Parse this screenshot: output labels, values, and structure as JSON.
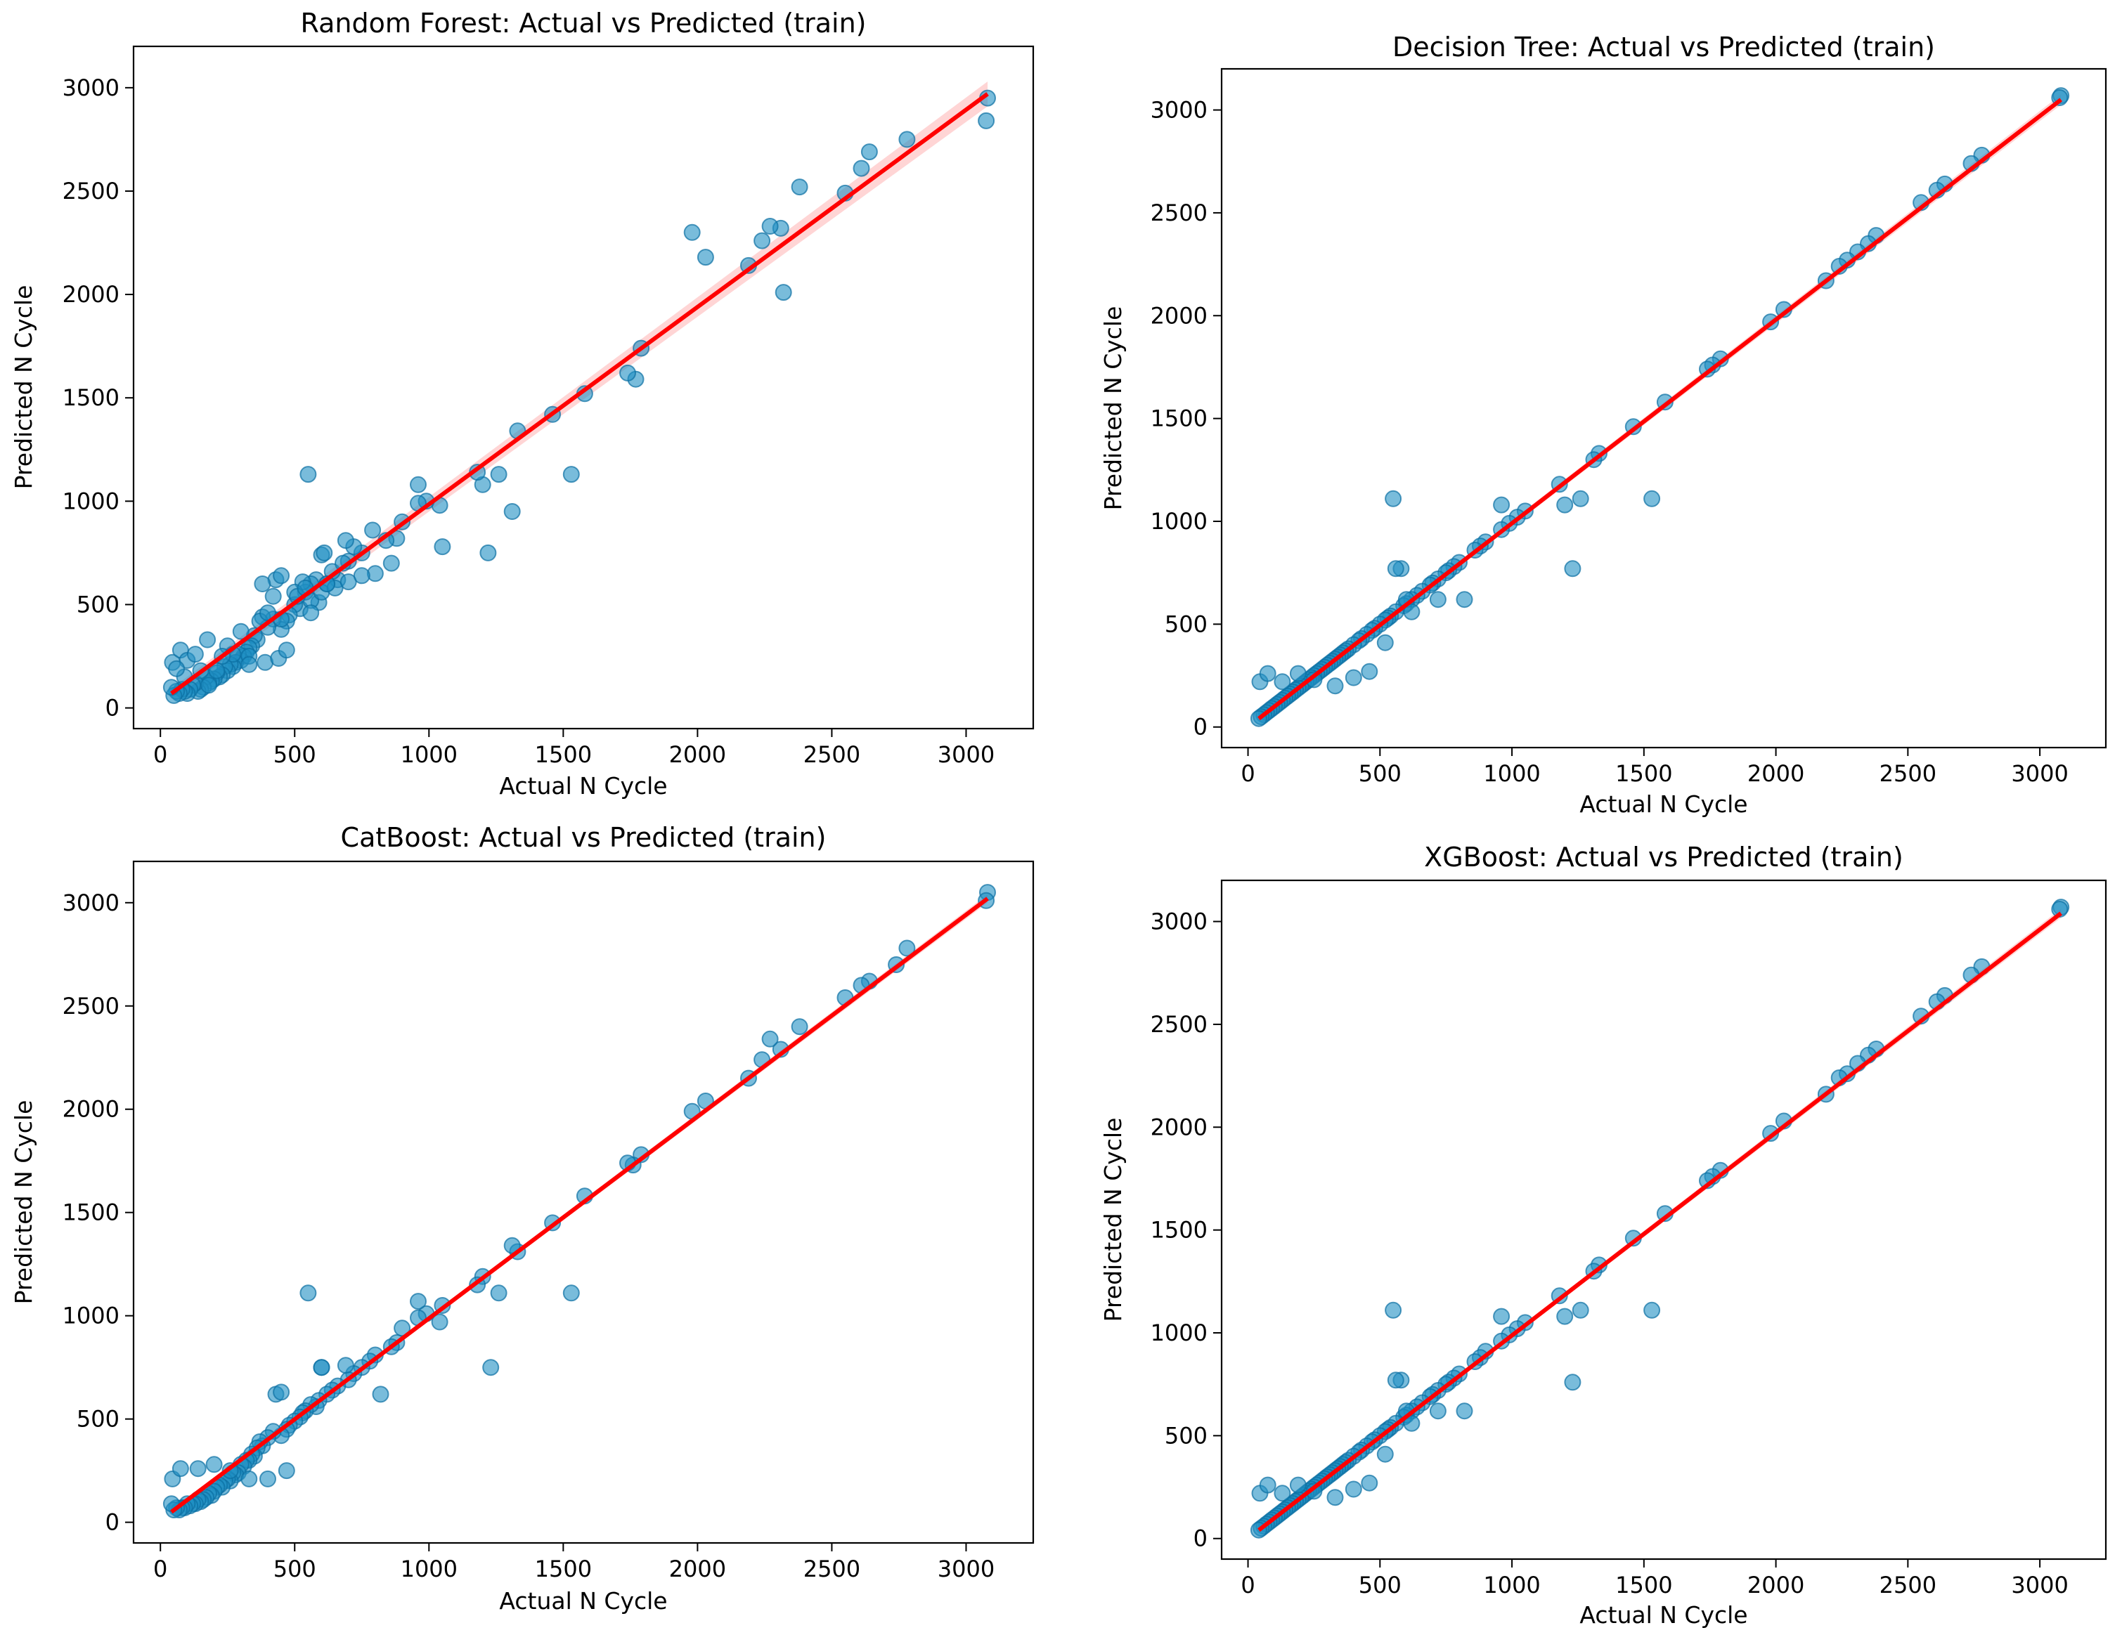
{
  "colors": {
    "point": "#1f8fc3",
    "point_edge": "#0b6fa3",
    "fit_line": "#ff0000",
    "confidence_band": "#ffb3b3"
  },
  "chart_data": [
    {
      "type": "scatter",
      "title": "Random Forest: Actual vs Predicted (train)",
      "xlabel": "Actual N Cycle",
      "ylabel": "Predicted N Cycle",
      "xlim": [
        -100,
        3250
      ],
      "ylim": [
        -100,
        3200
      ],
      "xticks": [
        0,
        500,
        1000,
        1500,
        2000,
        2500,
        3000
      ],
      "yticks": [
        0,
        500,
        1000,
        1500,
        2000,
        2500,
        3000
      ],
      "fit": {
        "x": [
          41,
          3080
        ],
        "y": [
          70,
          2970
        ]
      },
      "band_halfwidth": 60,
      "points": {
        "x": [
          3080,
          3075,
          2780,
          2640,
          2610,
          2550,
          2380,
          2310,
          2270,
          2240,
          2190,
          2030,
          1980,
          2320,
          1790,
          1770,
          1740,
          1580,
          1530,
          1460,
          1330,
          1310,
          1260,
          1220,
          1200,
          1180,
          1050,
          1040,
          990,
          960,
          960,
          900,
          880,
          860,
          840,
          800,
          790,
          750,
          720,
          700,
          690,
          660,
          640,
          620,
          600,
          590,
          580,
          560,
          540,
          530,
          550,
          520,
          500,
          480,
          470,
          450,
          430,
          420,
          400,
          380,
          370,
          360,
          350,
          340,
          330,
          320,
          310,
          300,
          290,
          280,
          270,
          260,
          250,
          240,
          230,
          220,
          210,
          200,
          190,
          180,
          170,
          160,
          150,
          140,
          130,
          120,
          110,
          100,
          90,
          80,
          70,
          60,
          50,
          41,
          45,
          75,
          100,
          175,
          250,
          330,
          390,
          440,
          470,
          610,
          450,
          380,
          420,
          500,
          560,
          600,
          650,
          700,
          750,
          300,
          330,
          270,
          230,
          210,
          180,
          150,
          130,
          90,
          60,
          400,
          450,
          510,
          540,
          560,
          620,
          680
        ],
        "y": [
          2950,
          2840,
          2750,
          2690,
          2610,
          2490,
          2520,
          2320,
          2330,
          2260,
          2140,
          2180,
          2300,
          2010,
          1740,
          1590,
          1620,
          1520,
          1130,
          1420,
          1340,
          950,
          1130,
          750,
          1080,
          1140,
          780,
          980,
          1000,
          1080,
          990,
          900,
          820,
          700,
          810,
          650,
          860,
          750,
          780,
          710,
          810,
          620,
          660,
          600,
          740,
          510,
          620,
          600,
          560,
          610,
          1130,
          480,
          500,
          450,
          420,
          380,
          620,
          430,
          390,
          440,
          420,
          330,
          350,
          300,
          290,
          270,
          250,
          230,
          260,
          220,
          200,
          210,
          180,
          200,
          160,
          150,
          170,
          140,
          130,
          120,
          150,
          100,
          90,
          80,
          120,
          110,
          90,
          70,
          80,
          90,
          70,
          80,
          60,
          100,
          220,
          280,
          230,
          330,
          300,
          250,
          220,
          240,
          280,
          750,
          640,
          600,
          540,
          560,
          520,
          560,
          580,
          610,
          640,
          370,
          210,
          260,
          250,
          180,
          110,
          180,
          260,
          150,
          190,
          460,
          430,
          540,
          580,
          460,
          600,
          700
        ]
      }
    },
    {
      "type": "scatter",
      "title": "Decision Tree: Actual vs Predicted (train)",
      "xlabel": "Actual N Cycle",
      "ylabel": "Predicted N Cycle",
      "xlim": [
        -100,
        3250
      ],
      "ylim": [
        -100,
        3200
      ],
      "xticks": [
        0,
        500,
        1000,
        1500,
        2000,
        2500,
        3000
      ],
      "yticks": [
        0,
        500,
        1000,
        1500,
        2000,
        2500,
        3000
      ],
      "fit": {
        "x": [
          41,
          3080
        ],
        "y": [
          41,
          3050
        ]
      },
      "band_halfwidth": 25,
      "points": {
        "x": [
          3080,
          3075,
          2780,
          2740,
          2640,
          2610,
          2550,
          2380,
          2350,
          2310,
          2270,
          2240,
          2190,
          2030,
          1980,
          1790,
          1760,
          1740,
          1580,
          1530,
          1460,
          1330,
          1310,
          1260,
          1230,
          1200,
          1180,
          1050,
          1020,
          990,
          960,
          960,
          900,
          880,
          860,
          820,
          800,
          780,
          760,
          750,
          720,
          700,
          690,
          660,
          640,
          620,
          600,
          590,
          580,
          560,
          540,
          530,
          550,
          520,
          500,
          480,
          470,
          450,
          430,
          420,
          400,
          380,
          370,
          360,
          350,
          340,
          330,
          320,
          310,
          300,
          290,
          280,
          270,
          260,
          250,
          240,
          230,
          220,
          210,
          200,
          190,
          180,
          170,
          160,
          150,
          140,
          130,
          120,
          110,
          100,
          90,
          80,
          70,
          60,
          50,
          41,
          45,
          75,
          130,
          190,
          250,
          330,
          400,
          460,
          600,
          620,
          720,
          560,
          520
        ],
        "y": [
          3070,
          3060,
          2780,
          2740,
          2640,
          2610,
          2550,
          2390,
          2350,
          2310,
          2270,
          2240,
          2170,
          2030,
          1970,
          1790,
          1760,
          1740,
          1580,
          1110,
          1460,
          1330,
          1300,
          1110,
          770,
          1080,
          1180,
          1050,
          1020,
          990,
          1080,
          960,
          900,
          880,
          860,
          620,
          800,
          780,
          760,
          750,
          720,
          700,
          690,
          660,
          640,
          620,
          600,
          590,
          770,
          560,
          540,
          530,
          1110,
          520,
          500,
          480,
          470,
          450,
          430,
          420,
          400,
          380,
          370,
          360,
          350,
          340,
          330,
          320,
          310,
          300,
          290,
          280,
          270,
          260,
          250,
          240,
          230,
          220,
          210,
          200,
          190,
          180,
          170,
          160,
          150,
          140,
          130,
          120,
          110,
          100,
          90,
          80,
          70,
          60,
          50,
          41,
          220,
          260,
          220,
          260,
          230,
          200,
          240,
          270,
          620,
          560,
          620,
          770,
          410
        ]
      }
    },
    {
      "type": "scatter",
      "title": "CatBoost: Actual vs Predicted (train)",
      "xlabel": "Actual N Cycle",
      "ylabel": "Predicted N Cycle",
      "xlim": [
        -100,
        3250
      ],
      "ylim": [
        -100,
        3200
      ],
      "xticks": [
        0,
        500,
        1000,
        1500,
        2000,
        2500,
        3000
      ],
      "yticks": [
        0,
        500,
        1000,
        1500,
        2000,
        2500,
        3000
      ],
      "fit": {
        "x": [
          41,
          3080
        ],
        "y": [
          50,
          3020
        ]
      },
      "band_halfwidth": 20,
      "points": {
        "x": [
          3080,
          3075,
          2780,
          2740,
          2640,
          2610,
          2550,
          2380,
          2310,
          2270,
          2240,
          2190,
          2030,
          1980,
          1790,
          1760,
          1740,
          1580,
          1530,
          1460,
          1330,
          1310,
          1260,
          1230,
          1200,
          1180,
          1050,
          1040,
          990,
          960,
          960,
          900,
          880,
          860,
          820,
          800,
          780,
          750,
          720,
          700,
          690,
          660,
          640,
          620,
          600,
          590,
          580,
          560,
          540,
          530,
          550,
          520,
          500,
          480,
          470,
          450,
          430,
          420,
          400,
          380,
          370,
          360,
          350,
          340,
          330,
          320,
          310,
          300,
          290,
          280,
          270,
          260,
          250,
          240,
          230,
          220,
          210,
          200,
          190,
          180,
          170,
          160,
          150,
          140,
          130,
          120,
          110,
          100,
          90,
          80,
          70,
          60,
          50,
          41,
          45,
          75,
          140,
          200,
          260,
          330,
          400,
          470,
          600,
          450
        ],
        "y": [
          3050,
          3010,
          2780,
          2700,
          2620,
          2600,
          2540,
          2400,
          2290,
          2340,
          2240,
          2150,
          2040,
          1990,
          1780,
          1730,
          1740,
          1580,
          1110,
          1450,
          1310,
          1340,
          1110,
          750,
          1190,
          1150,
          1050,
          970,
          1010,
          1070,
          990,
          940,
          870,
          850,
          620,
          810,
          780,
          750,
          720,
          690,
          760,
          660,
          640,
          620,
          750,
          590,
          560,
          570,
          540,
          530,
          1110,
          510,
          490,
          470,
          450,
          420,
          620,
          440,
          410,
          370,
          390,
          360,
          320,
          330,
          300,
          300,
          270,
          280,
          240,
          230,
          240,
          200,
          210,
          200,
          170,
          180,
          170,
          150,
          130,
          140,
          120,
          110,
          100,
          110,
          90,
          90,
          80,
          90,
          70,
          70,
          60,
          70,
          60,
          90,
          210,
          260,
          260,
          280,
          250,
          210,
          210,
          250,
          750,
          630
        ]
      }
    },
    {
      "type": "scatter",
      "title": "XGBoost: Actual vs Predicted (train)",
      "xlabel": "Actual N Cycle",
      "ylabel": "Predicted N Cycle",
      "xlim": [
        -100,
        3250
      ],
      "ylim": [
        -100,
        3200
      ],
      "xticks": [
        0,
        500,
        1000,
        1500,
        2000,
        2500,
        3000
      ],
      "yticks": [
        0,
        500,
        1000,
        1500,
        2000,
        2500,
        3000
      ],
      "fit": {
        "x": [
          41,
          3080
        ],
        "y": [
          41,
          3040
        ]
      },
      "band_halfwidth": 22,
      "points": {
        "x": [
          3080,
          3075,
          2780,
          2740,
          2640,
          2610,
          2550,
          2380,
          2350,
          2310,
          2270,
          2240,
          2190,
          2030,
          1980,
          1790,
          1760,
          1740,
          1580,
          1530,
          1460,
          1330,
          1310,
          1260,
          1230,
          1200,
          1180,
          1050,
          1020,
          990,
          960,
          960,
          900,
          880,
          860,
          820,
          800,
          780,
          760,
          750,
          720,
          700,
          690,
          660,
          640,
          620,
          600,
          590,
          580,
          560,
          540,
          530,
          550,
          520,
          500,
          480,
          470,
          450,
          430,
          420,
          400,
          380,
          370,
          360,
          350,
          340,
          330,
          320,
          310,
          300,
          290,
          280,
          270,
          260,
          250,
          240,
          230,
          220,
          210,
          200,
          190,
          180,
          170,
          160,
          150,
          140,
          130,
          120,
          110,
          100,
          90,
          80,
          70,
          60,
          50,
          41,
          45,
          75,
          130,
          190,
          250,
          330,
          400,
          460,
          600,
          620,
          720,
          560,
          520
        ],
        "y": [
          3070,
          3060,
          2780,
          2740,
          2640,
          2610,
          2540,
          2380,
          2350,
          2310,
          2260,
          2240,
          2160,
          2030,
          1970,
          1790,
          1760,
          1740,
          1580,
          1110,
          1460,
          1330,
          1300,
          1110,
          760,
          1080,
          1180,
          1050,
          1020,
          990,
          1080,
          960,
          910,
          880,
          860,
          620,
          800,
          780,
          760,
          750,
          720,
          700,
          690,
          660,
          640,
          620,
          600,
          590,
          770,
          560,
          540,
          530,
          1110,
          520,
          500,
          480,
          470,
          450,
          430,
          420,
          400,
          380,
          370,
          360,
          350,
          340,
          330,
          320,
          310,
          300,
          290,
          280,
          270,
          260,
          250,
          240,
          230,
          220,
          210,
          200,
          190,
          180,
          170,
          160,
          150,
          140,
          130,
          120,
          110,
          100,
          90,
          80,
          70,
          60,
          50,
          41,
          220,
          260,
          220,
          260,
          230,
          200,
          240,
          270,
          620,
          560,
          620,
          770,
          410
        ]
      }
    }
  ]
}
